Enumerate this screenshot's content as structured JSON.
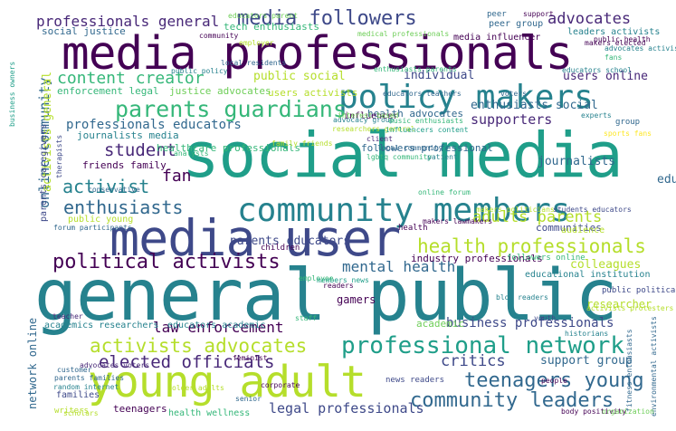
{
  "palette": {
    "dark_purple": "#440154",
    "purple": "#482878",
    "indigo": "#3e4989",
    "blue": "#31688e",
    "teal_blue": "#26828e",
    "teal": "#1f9e89",
    "green": "#35b779",
    "light_green": "#6ece58",
    "lime": "#b5de2b",
    "yellow": "#fde725"
  },
  "words": [
    {
      "text": "general public",
      "color": "#26828e"
    },
    {
      "text": "social media",
      "color": "#1f9e89"
    },
    {
      "text": "media professionals",
      "color": "#440154"
    },
    {
      "text": "media user",
      "color": "#3e4989"
    },
    {
      "text": "young adult",
      "color": "#b5de2b"
    },
    {
      "text": "policy makers",
      "color": "#26828e"
    },
    {
      "text": "community members",
      "color": "#26828e"
    },
    {
      "text": "parents guardians",
      "color": "#35b779"
    },
    {
      "text": "professional network",
      "color": "#1f9e89"
    },
    {
      "text": "activists advocates",
      "color": "#b5de2b"
    },
    {
      "text": "community leaders",
      "color": "#31688e"
    },
    {
      "text": "teenagers young",
      "color": "#31688e"
    },
    {
      "text": "political activists",
      "color": "#440154"
    },
    {
      "text": "media followers",
      "color": "#3e4989"
    },
    {
      "text": "health professionals",
      "color": "#b5de2b"
    },
    {
      "text": "elected officials",
      "color": "#482878"
    },
    {
      "text": "enthusiasts",
      "color": "#31688e"
    },
    {
      "text": "activist",
      "color": "#26828e"
    },
    {
      "text": "content creator",
      "color": "#35b779"
    },
    {
      "text": "student",
      "color": "#482878"
    },
    {
      "text": "professionals general",
      "color": "#482878"
    },
    {
      "text": "advocates",
      "color": "#482878"
    },
    {
      "text": "law enforcement",
      "color": "#440154"
    },
    {
      "text": "critics",
      "color": "#3e4989"
    },
    {
      "text": "adults parents",
      "color": "#b5de2b"
    },
    {
      "text": "fan",
      "color": "#440154"
    },
    {
      "text": "mental health",
      "color": "#31688e"
    },
    {
      "text": "business professionals",
      "color": "#3e4989"
    },
    {
      "text": "legal professionals",
      "color": "#3e4989"
    },
    {
      "text": "supporters",
      "color": "#482878"
    },
    {
      "text": "professionals educators",
      "color": "#31688e"
    },
    {
      "text": "parents educators",
      "color": "#3e4989"
    },
    {
      "text": "public social",
      "color": "#b5de2b"
    },
    {
      "text": "journalists",
      "color": "#31688e"
    },
    {
      "text": "individual",
      "color": "#3e4989"
    },
    {
      "text": "support group",
      "color": "#31688e"
    },
    {
      "text": "enthusiasts social",
      "color": "#31688e"
    },
    {
      "text": "users online",
      "color": "#482878"
    },
    {
      "text": "colleagues",
      "color": "#b5de2b"
    },
    {
      "text": "gamers",
      "color": "#440154"
    },
    {
      "text": "researcher",
      "color": "#b5de2b"
    },
    {
      "text": "academic",
      "color": "#6ece58"
    },
    {
      "text": "health advocates",
      "color": "#31688e"
    },
    {
      "text": "friends family",
      "color": "#440154"
    },
    {
      "text": "teenagers",
      "color": "#440154"
    },
    {
      "text": "industry professionals",
      "color": "#440154"
    },
    {
      "text": "communities",
      "color": "#3e4989"
    },
    {
      "text": "healthcare professionals",
      "color": "#35b779"
    },
    {
      "text": "followers professional",
      "color": "#31688e"
    },
    {
      "text": "journalists media",
      "color": "#26828e"
    },
    {
      "text": "tech enthusiasts",
      "color": "#35b779"
    },
    {
      "text": "users activists",
      "color": "#b5de2b"
    },
    {
      "text": "justice advocates",
      "color": "#6ece58"
    },
    {
      "text": "enforcement legal",
      "color": "#35b779"
    },
    {
      "text": "social justice",
      "color": "#31688e"
    },
    {
      "text": "leaders activists",
      "color": "#26828e"
    },
    {
      "text": "peer group",
      "color": "#31688e"
    },
    {
      "text": "media influencer",
      "color": "#440154"
    },
    {
      "text": "influencer",
      "color": "#440154"
    },
    {
      "text": "public young",
      "color": "#b5de2b"
    },
    {
      "text": "academics researchers",
      "color": "#26828e"
    },
    {
      "text": "educators academic",
      "color": "#26828e"
    },
    {
      "text": "families",
      "color": "#3e4989"
    },
    {
      "text": "health wellness",
      "color": "#35b779"
    },
    {
      "text": "educational institution",
      "color": "#26828e"
    },
    {
      "text": "audience",
      "color": "#b5de2b"
    },
    {
      "text": "followers online",
      "color": "#35b779"
    },
    {
      "text": "public political",
      "color": "#3e4989"
    },
    {
      "text": "news readers",
      "color": "#3e4989"
    },
    {
      "text": "community",
      "color": "#440154"
    },
    {
      "text": "peer",
      "color": "#31688e"
    },
    {
      "text": "support",
      "color": "#440154"
    },
    {
      "text": "educators parent",
      "color": "#6ece58"
    },
    {
      "text": "employer",
      "color": "#b5de2b"
    },
    {
      "text": "enthusiasts parents",
      "color": "#35b779"
    },
    {
      "text": "health",
      "color": "#440154"
    },
    {
      "text": "group",
      "color": "#31688e"
    },
    {
      "text": "writers",
      "color": "#b5de2b"
    },
    {
      "text": "customer",
      "color": "#31688e"
    },
    {
      "text": "random internet",
      "color": "#26828e"
    },
    {
      "text": "parents families",
      "color": "#31688e"
    },
    {
      "text": "advocates voters",
      "color": "#482878"
    },
    {
      "text": "medical professionals",
      "color": "#6ece58"
    },
    {
      "text": "local community",
      "color": "#31688e"
    },
    {
      "text": "advocacy group",
      "color": "#26828e"
    },
    {
      "text": "music enthusiasts",
      "color": "#35b779"
    },
    {
      "text": "children",
      "color": "#440154"
    },
    {
      "text": "online forum",
      "color": "#35b779"
    },
    {
      "text": "makers elected",
      "color": "#440154"
    },
    {
      "text": "public policy",
      "color": "#26828e"
    },
    {
      "text": "educators school",
      "color": "#26828e"
    },
    {
      "text": "conservative",
      "color": "#31688e"
    },
    {
      "text": "corporate",
      "color": "#440154"
    },
    {
      "text": "senior",
      "color": "#31688e"
    },
    {
      "text": "experts",
      "color": "#26828e"
    },
    {
      "text": "feminist",
      "color": "#440154"
    },
    {
      "text": "historians",
      "color": "#26828e"
    },
    {
      "text": "researchers general",
      "color": "#b5de2b"
    },
    {
      "text": "influencers content",
      "color": "#1f9e89"
    },
    {
      "text": "lgbtq community",
      "color": "#35b779"
    },
    {
      "text": "patient",
      "color": "#26828e"
    },
    {
      "text": "family friends",
      "color": "#b5de2b"
    },
    {
      "text": "sports fans",
      "color": "#fde725"
    },
    {
      "text": "educators students",
      "color": "#31688e"
    },
    {
      "text": "online community",
      "color": "#31688e"
    },
    {
      "text": "activists general",
      "color": "#b5de2b"
    },
    {
      "text": "parents caregivers",
      "color": "#3e4989"
    },
    {
      "text": "network online",
      "color": "#31688e"
    },
    {
      "text": "therapists",
      "color": "#3e4989"
    },
    {
      "text": "fitness enthusiasts",
      "color": "#31688e"
    },
    {
      "text": "environmental activists",
      "color": "#31688e"
    },
    {
      "text": "business owners",
      "color": "#1f9e89"
    },
    {
      "text": "body positivity",
      "color": "#440154"
    },
    {
      "text": "organization",
      "color": "#6ece58"
    },
    {
      "text": "scholars",
      "color": "#b5de2b"
    },
    {
      "text": "staff",
      "color": "#35b779"
    },
    {
      "text": "readers",
      "color": "#440154"
    },
    {
      "text": "teacher",
      "color": "#482878"
    },
    {
      "text": "students educators",
      "color": "#3e4989"
    },
    {
      "text": "blog readers",
      "color": "#26828e"
    },
    {
      "text": "voters",
      "color": "#31688e"
    },
    {
      "text": "forum participants",
      "color": "#31688e"
    },
    {
      "text": "makers politicians",
      "color": "#b5de2b"
    },
    {
      "text": "people",
      "color": "#440154"
    },
    {
      "text": "makers lawmakers",
      "color": "#440154"
    },
    {
      "text": "older adults",
      "color": "#b5de2b"
    },
    {
      "text": "interest based",
      "color": "#6ece58"
    },
    {
      "text": "client",
      "color": "#482878"
    },
    {
      "text": "fans",
      "color": "#35b779"
    },
    {
      "text": "youth",
      "color": "#3e4989"
    },
    {
      "text": "analysts",
      "color": "#35b779"
    },
    {
      "text": "advocates activist",
      "color": "#26828e"
    },
    {
      "text": "educators teachers",
      "color": "#31688e"
    },
    {
      "text": "local residents",
      "color": "#31688e"
    },
    {
      "text": "public health",
      "color": "#440154"
    },
    {
      "text": "members news",
      "color": "#1f9e89"
    },
    {
      "text": "employee",
      "color": "#35b779"
    },
    {
      "text": "activists protesters",
      "color": "#b5de2b"
    }
  ]
}
